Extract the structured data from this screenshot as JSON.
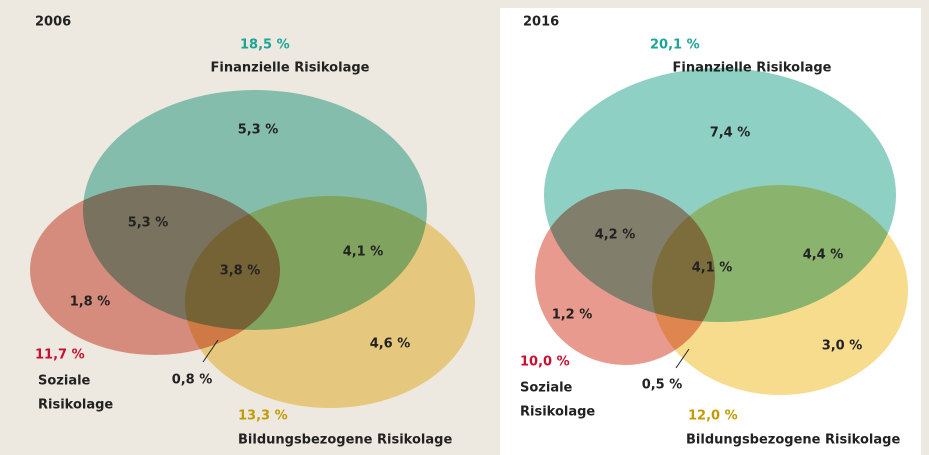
{
  "panels": [
    {
      "year": "2006",
      "financial": {
        "total": "18,5 %",
        "label": "Finanzielle Risikolage"
      },
      "social": {
        "total": "11,7 %",
        "label_lines": [
          "Soziale",
          "Risikolage"
        ]
      },
      "education": {
        "total": "13,3 %",
        "label": "Bildungsbezogene Risikolage"
      },
      "regions": {
        "financial_only": "5,3 %",
        "financial_social": "5,3 %",
        "all_three": "3,8 %",
        "financial_education": "4,1 %",
        "social_only": "1,8 %",
        "education_only": "4,6 %",
        "social_education": "0,8 %"
      }
    },
    {
      "year": "2016",
      "financial": {
        "total": "20,1 %",
        "label": "Finanzielle Risikolage"
      },
      "social": {
        "total": "10,0 %",
        "label_lines": [
          "Soziale",
          "Risikolage"
        ]
      },
      "education": {
        "total": "12,0 %",
        "label": "Bildungsbezogene Risikolage"
      },
      "regions": {
        "financial_only": "7,4 %",
        "financial_social": "4,2 %",
        "all_three": "4,1 %",
        "financial_education": "4,4 %",
        "social_only": "1,2 %",
        "education_only": "3,0 %",
        "social_education": "0,5 %"
      }
    }
  ]
}
